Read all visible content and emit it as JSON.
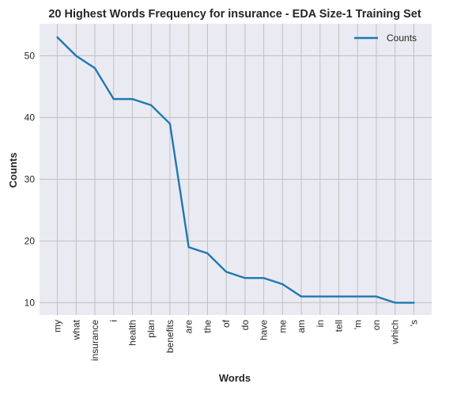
{
  "chart_data": {
    "type": "line",
    "title": "20 Highest Words Frequency for insurance - EDA Size-1 Training Set",
    "xlabel": "Words",
    "ylabel": "Counts",
    "categories": [
      "my",
      "what",
      "insurance",
      "i",
      "health",
      "plan",
      "benefits",
      "are",
      "the",
      "of",
      "do",
      "have",
      "me",
      "am",
      "in",
      "tell",
      "'m",
      "on",
      "which",
      "'s"
    ],
    "series": [
      {
        "name": "Counts",
        "values": [
          53,
          50,
          48,
          43,
          43,
          42,
          39,
          19,
          18,
          15,
          14,
          14,
          13,
          11,
          11,
          11,
          11,
          11,
          10,
          10
        ],
        "color": "#1f77b4"
      }
    ],
    "yticks": [
      10,
      20,
      30,
      40,
      50
    ],
    "ylim": [
      8,
      55.2
    ],
    "grid": true,
    "legend": "top-right",
    "background": "#eaeaf2",
    "grid_color": "#c0c0c0"
  }
}
